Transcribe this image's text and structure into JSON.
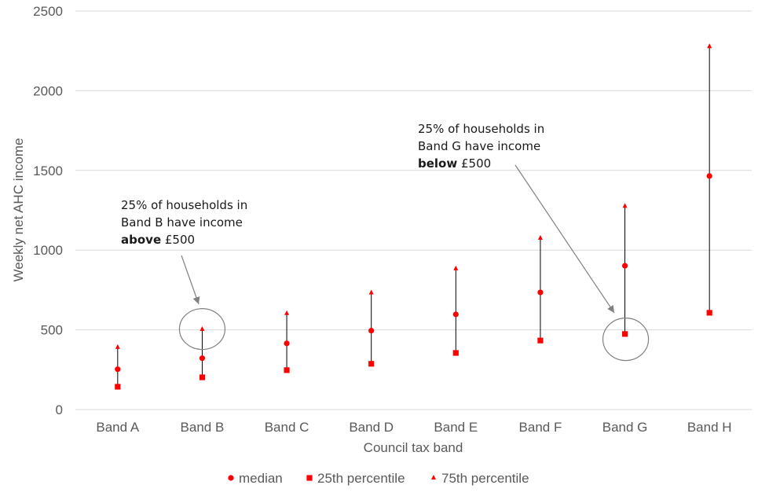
{
  "chart_data": {
    "type": "scatter",
    "title": "",
    "xlabel": "Council tax band",
    "ylabel": "Weekly net AHC income",
    "ylim": [
      0,
      2500
    ],
    "yticks": [
      0,
      500,
      1000,
      1500,
      2000,
      2500
    ],
    "grid": "horizontal",
    "legend_position": "bottom",
    "categories": [
      "Band A",
      "Band B",
      "Band C",
      "Band D",
      "Band E",
      "Band F",
      "Band G",
      "Band H"
    ],
    "series": [
      {
        "name": "median",
        "marker": "circle",
        "color": "#ff0000",
        "values": [
          253,
          322,
          415,
          495,
          597,
          735,
          902,
          1465
        ]
      },
      {
        "name": "25th percentile",
        "marker": "square",
        "color": "#ff0000",
        "values": [
          143,
          202,
          247,
          287,
          355,
          433,
          474,
          607
        ]
      },
      {
        "name": "75th percentile",
        "marker": "triangle",
        "color": "#ff0000",
        "values": [
          390,
          503,
          603,
          732,
          883,
          1075,
          1275,
          2277
        ]
      }
    ],
    "annotations": [
      {
        "lines": [
          [
            {
              "text": "25% of households in",
              "bold": false
            }
          ],
          [
            {
              "text": "Band B have income",
              "bold": false
            }
          ],
          [
            {
              "text": "above",
              "bold": true
            },
            {
              "text": " £500",
              "bold": false
            }
          ]
        ],
        "target_category": "Band B",
        "target_value": 500
      },
      {
        "lines": [
          [
            {
              "text": "25% of households in",
              "bold": false
            }
          ],
          [
            {
              "text": "Band G have income",
              "bold": false
            }
          ],
          [
            {
              "text": "below",
              "bold": true
            },
            {
              "text": " £500",
              "bold": false
            }
          ]
        ],
        "target_category": "Band G",
        "target_value": 500
      }
    ]
  },
  "colors": {
    "marker": "#ff0000",
    "range_line": "#000000",
    "gridline": "#d9d9d9",
    "text": "#595959",
    "annotation_ring": "#808080"
  }
}
